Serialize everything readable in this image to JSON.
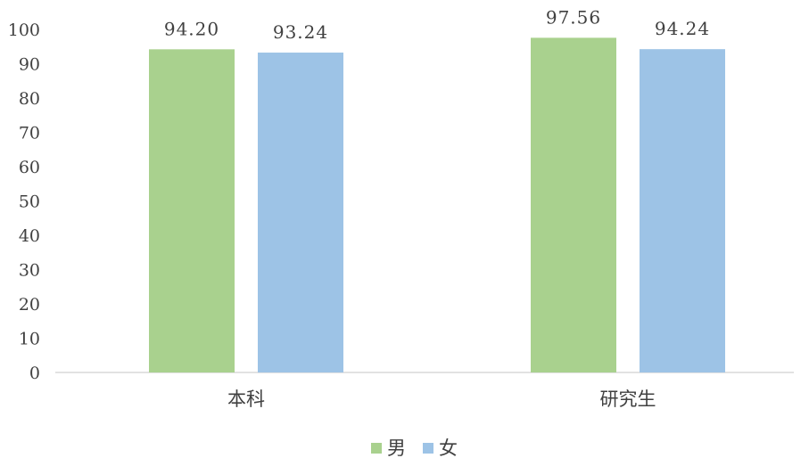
{
  "chart_data": {
    "type": "bar",
    "categories": [
      "本科",
      "研究生"
    ],
    "series": [
      {
        "name": "男",
        "values": [
          94.2,
          97.56
        ],
        "color": "#a9d18e"
      },
      {
        "name": "女",
        "values": [
          93.24,
          94.24
        ],
        "color": "#9dc3e6"
      }
    ],
    "data_labels": [
      [
        "94.20",
        "97.56"
      ],
      [
        "93.24",
        "94.24"
      ]
    ],
    "yticks": [
      "0",
      "10",
      "20",
      "30",
      "40",
      "50",
      "60",
      "70",
      "80",
      "90",
      "100"
    ],
    "ylim": [
      0,
      100
    ],
    "grid": false,
    "legend_position": "bottom",
    "title": "",
    "xlabel": "",
    "ylabel": ""
  }
}
